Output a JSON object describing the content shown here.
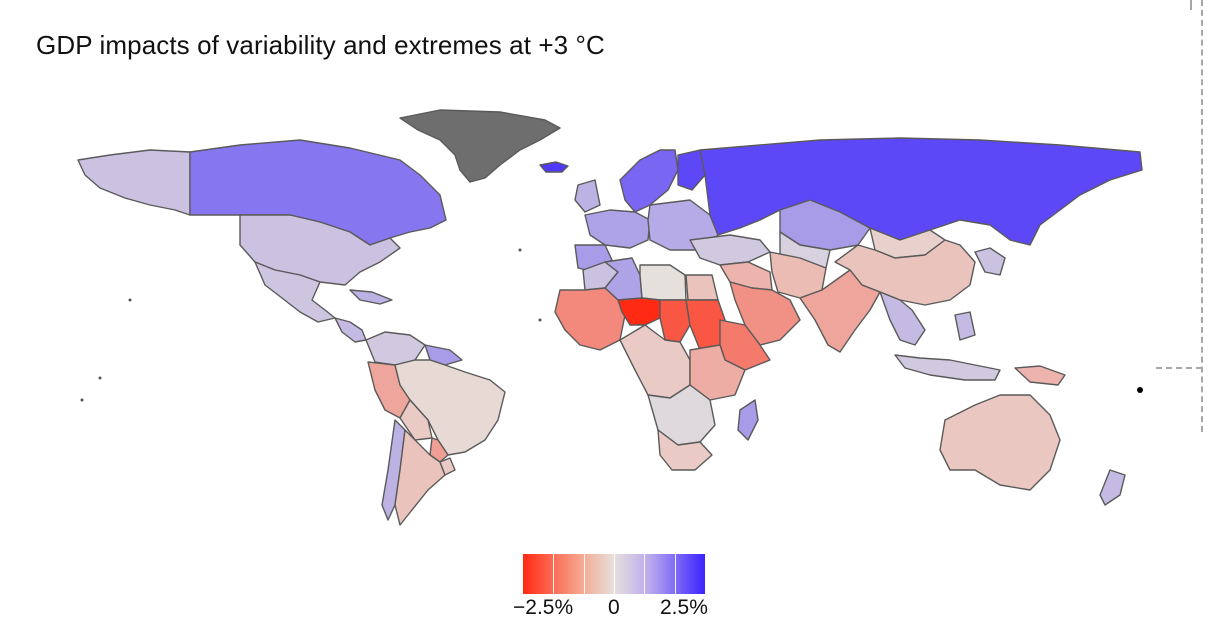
{
  "title": "GDP impacts of variability and extremes at +3 °C",
  "legend": {
    "labels": [
      "−2.5%",
      "0",
      "2.5%"
    ],
    "min_value": -2.5,
    "max_value": 2.5,
    "colors": {
      "negative": "#ff2a14",
      "neutral": "#e6e0dc",
      "positive": "#3b22ff",
      "no_data": "#6e6e6e",
      "border": "#5a5a5a"
    }
  },
  "map_data": {
    "type": "choropleth",
    "regions": [
      {
        "id": "greenland",
        "value": null
      },
      {
        "id": "iceland",
        "value": 2.2
      },
      {
        "id": "alaska-us",
        "value": 0.4
      },
      {
        "id": "canada",
        "value": 1.4
      },
      {
        "id": "usa",
        "value": 0.4
      },
      {
        "id": "mexico",
        "value": 0.35
      },
      {
        "id": "central-america",
        "value": 0.5
      },
      {
        "id": "caribbean",
        "value": 0.6
      },
      {
        "id": "colombia-venezuela",
        "value": 0.3
      },
      {
        "id": "guianas",
        "value": 0.9
      },
      {
        "id": "peru-ecuador",
        "value": -0.8
      },
      {
        "id": "brazil",
        "value": -0.1
      },
      {
        "id": "bolivia",
        "value": -0.3
      },
      {
        "id": "paraguay",
        "value": -0.9
      },
      {
        "id": "chile",
        "value": 0.6
      },
      {
        "id": "argentina",
        "value": -0.4
      },
      {
        "id": "uruguay",
        "value": -0.3
      },
      {
        "id": "scandinavia",
        "value": 1.6
      },
      {
        "id": "finland",
        "value": 2.0
      },
      {
        "id": "western-europe",
        "value": 0.8
      },
      {
        "id": "uk-ireland",
        "value": 0.6
      },
      {
        "id": "iberia",
        "value": 0.9
      },
      {
        "id": "eastern-europe",
        "value": 0.7
      },
      {
        "id": "russia",
        "value": 2.0
      },
      {
        "id": "kazakhstan",
        "value": 0.9
      },
      {
        "id": "central-asia",
        "value": 0.2
      },
      {
        "id": "mongolia",
        "value": -0.2
      },
      {
        "id": "china",
        "value": -0.4
      },
      {
        "id": "korea-japan",
        "value": 0.4
      },
      {
        "id": "turkey-caucasus",
        "value": 0.3
      },
      {
        "id": "middle-east",
        "value": -0.6
      },
      {
        "id": "iran",
        "value": -0.5
      },
      {
        "id": "arabia",
        "value": -1.1
      },
      {
        "id": "south-asia",
        "value": -0.8
      },
      {
        "id": "southeast-asia",
        "value": 0.5
      },
      {
        "id": "indonesia",
        "value": 0.3
      },
      {
        "id": "philippines",
        "value": 0.5
      },
      {
        "id": "papua",
        "value": -0.6
      },
      {
        "id": "australia",
        "value": -0.35
      },
      {
        "id": "new-zealand",
        "value": 0.5
      },
      {
        "id": "morocco",
        "value": 0.4
      },
      {
        "id": "algeria",
        "value": 0.8
      },
      {
        "id": "libya",
        "value": 0.0
      },
      {
        "id": "egypt",
        "value": -0.4
      },
      {
        "id": "west-africa-sahel",
        "value": -1.2
      },
      {
        "id": "niger",
        "value": -2.8
      },
      {
        "id": "chad",
        "value": -1.9
      },
      {
        "id": "sudan",
        "value": -1.9
      },
      {
        "id": "horn-of-africa",
        "value": -1.4
      },
      {
        "id": "central-africa",
        "value": -0.3
      },
      {
        "id": "east-africa",
        "value": -0.7
      },
      {
        "id": "southern-africa",
        "value": 0.1
      },
      {
        "id": "south-africa",
        "value": -0.3
      },
      {
        "id": "madagascar",
        "value": 0.9
      }
    ]
  }
}
